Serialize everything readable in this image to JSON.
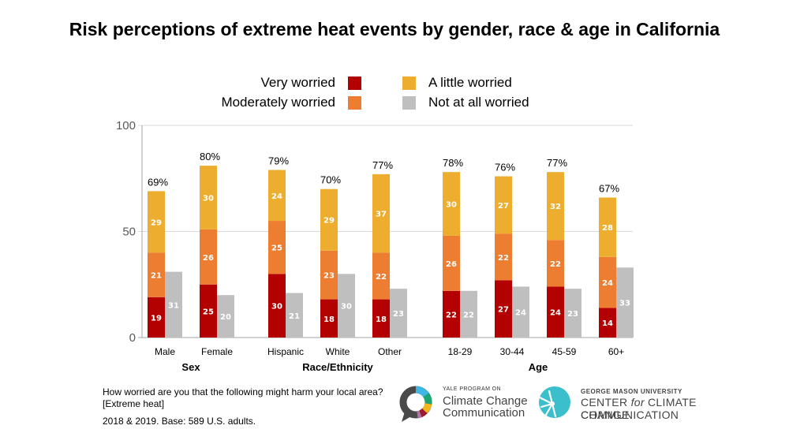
{
  "title": "Risk perceptions of extreme heat events by gender, race & age in California",
  "legend": [
    {
      "label": "Very worried",
      "color": "#b30000"
    },
    {
      "label": "Moderately worried",
      "color": "#ed7d31"
    },
    {
      "label": "A little worried",
      "color": "#edae2f"
    },
    {
      "label": "Not at all worried",
      "color": "#bfbfbf"
    }
  ],
  "chart_data": {
    "type": "bar",
    "title": "Risk perceptions of extreme heat events by gender, race & age in California",
    "xlabel": "",
    "ylabel": "",
    "ylim": [
      0,
      100
    ],
    "yticks": [
      "0",
      "50",
      "100"
    ],
    "grid": true,
    "legend_position": "top-center",
    "stacked_series": [
      "Very worried",
      "Moderately worried",
      "A little worried"
    ],
    "side_series": "Not at all worried",
    "groups": [
      {
        "label": "Sex",
        "categories": [
          "Male",
          "Female"
        ]
      },
      {
        "label": "Race/Ethnicity",
        "categories": [
          "Hispanic",
          "White",
          "Other"
        ]
      },
      {
        "label": "Age",
        "categories": [
          "18-29",
          "30-44",
          "45-59",
          "60+"
        ]
      }
    ],
    "categories": [
      "Male",
      "Female",
      "Hispanic",
      "White",
      "Other",
      "18-29",
      "30-44",
      "45-59",
      "60+"
    ],
    "series": [
      {
        "name": "Very worried",
        "color": "#b30000",
        "values": [
          19,
          25,
          30,
          18,
          18,
          22,
          27,
          24,
          14
        ]
      },
      {
        "name": "Moderately worried",
        "color": "#ed7d31",
        "values": [
          21,
          26,
          25,
          23,
          22,
          26,
          22,
          22,
          24
        ]
      },
      {
        "name": "A little worried",
        "color": "#edae2f",
        "values": [
          29,
          30,
          24,
          29,
          37,
          30,
          27,
          32,
          28
        ]
      },
      {
        "name": "Not at all worried",
        "color": "#bfbfbf",
        "values": [
          31,
          20,
          21,
          30,
          23,
          22,
          24,
          23,
          33
        ]
      }
    ],
    "totals": [
      "69%",
      "80%",
      "79%",
      "70%",
      "77%",
      "78%",
      "76%",
      "77%",
      "67%"
    ]
  },
  "footnote": {
    "question": "How worried are you that the following might harm your local area?",
    "item": "[Extreme heat]",
    "source": "2018 & 2019. Base: 589 U.S. adults."
  },
  "logos": {
    "yale": {
      "small": "YALE PROGRAM ON",
      "line1": "Climate Change",
      "line2": "Communication"
    },
    "gmu": {
      "small": "GEORGE MASON UNIVERSITY",
      "line1_a": "CENTER ",
      "line1_b": "for",
      "line1_c": " CLIMATE CHANGE",
      "line2": "COMMUNICATION"
    }
  }
}
